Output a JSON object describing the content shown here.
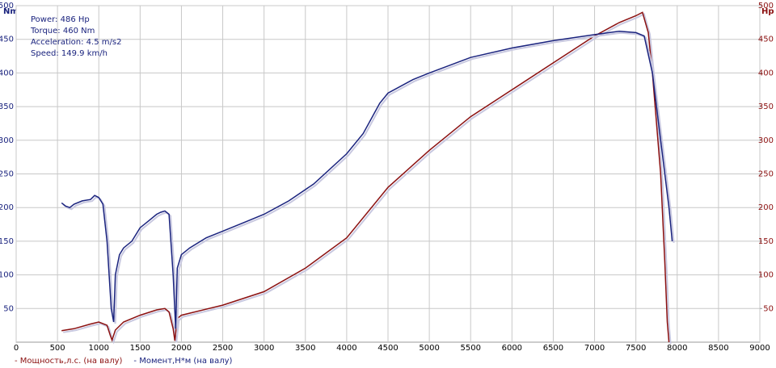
{
  "chart_data": {
    "type": "line",
    "ylabel": "Nm",
    "y2label": "Hp",
    "annotations": [
      "Power: 486 Hp",
      "Torque: 460 Nm",
      "Acceleration: 4.5 m/s2",
      "Speed: 149.9 km/h"
    ],
    "xlim": [
      0,
      9000
    ],
    "xticks": [
      0,
      500,
      1000,
      1500,
      2000,
      2500,
      3000,
      3500,
      4000,
      4500,
      5000,
      5500,
      6000,
      6500,
      7000,
      7500,
      8000,
      8500,
      9000
    ],
    "ylim": [
      0,
      500
    ],
    "yticks": [
      50,
      100,
      150,
      200,
      250,
      300,
      350,
      400,
      450,
      500
    ],
    "y2lim": [
      0,
      500
    ],
    "y2ticks": [
      50,
      100,
      150,
      200,
      250,
      300,
      350,
      400,
      450,
      500
    ],
    "grid": true,
    "legend": "bottom-left",
    "series": [
      {
        "name": "- Мощность,л.с. (на валу)",
        "color": "#8b1010",
        "axis": "y2",
        "x": [
          550,
          700,
          900,
          1000,
          1100,
          1140,
          1160,
          1200,
          1300,
          1500,
          1700,
          1800,
          1850,
          1900,
          1920,
          1950,
          2000,
          2500,
          3000,
          3500,
          4000,
          4500,
          5000,
          5500,
          6000,
          6500,
          7000,
          7300,
          7500,
          7580,
          7650,
          7700,
          7800,
          7850,
          7880,
          7900
        ],
        "values": [
          17,
          20,
          27,
          30,
          25,
          10,
          3,
          18,
          30,
          40,
          48,
          50,
          45,
          20,
          2,
          35,
          40,
          55,
          75,
          110,
          155,
          230,
          285,
          335,
          375,
          415,
          455,
          475,
          485,
          490,
          460,
          400,
          250,
          120,
          30,
          0
        ]
      },
      {
        "name": "- Момент,Н*м (на валу)",
        "color": "#1a237e",
        "axis": "y",
        "x": [
          550,
          600,
          650,
          700,
          800,
          900,
          950,
          1000,
          1050,
          1100,
          1150,
          1180,
          1200,
          1250,
          1300,
          1400,
          1500,
          1600,
          1700,
          1750,
          1800,
          1850,
          1900,
          1930,
          1950,
          2000,
          2100,
          2300,
          2500,
          2800,
          3000,
          3300,
          3600,
          4000,
          4200,
          4400,
          4500,
          4800,
          5000,
          5500,
          6000,
          6500,
          7000,
          7300,
          7500,
          7600,
          7700,
          7800,
          7900,
          7940
        ],
        "values": [
          207,
          202,
          200,
          205,
          210,
          212,
          218,
          215,
          205,
          150,
          50,
          30,
          100,
          130,
          140,
          150,
          170,
          180,
          190,
          193,
          195,
          190,
          100,
          20,
          110,
          130,
          140,
          155,
          165,
          180,
          190,
          210,
          235,
          280,
          310,
          355,
          370,
          390,
          400,
          423,
          437,
          448,
          457,
          462,
          460,
          455,
          400,
          300,
          200,
          150
        ]
      }
    ]
  }
}
